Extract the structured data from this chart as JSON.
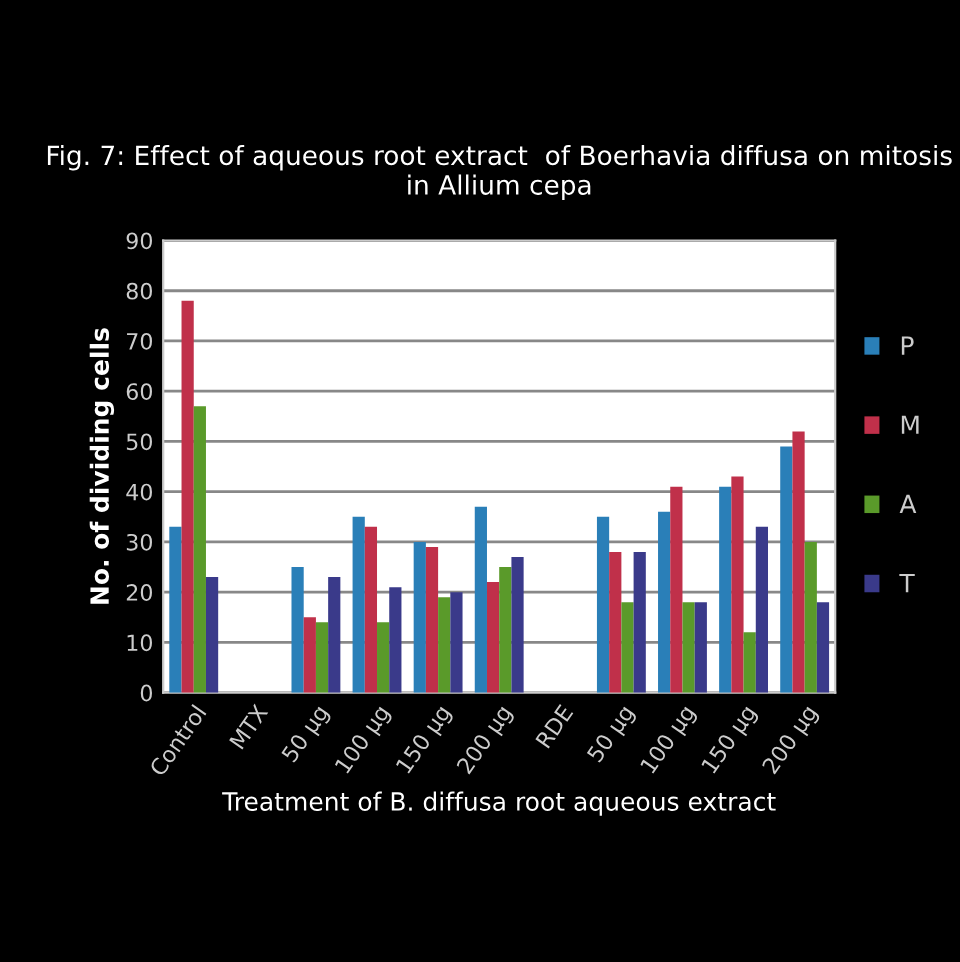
{
  "chart_data": {
    "type": "bar",
    "title": "Fig. 7: Effect of aqueous root extract  of Boerhavia diffusa on mitosis in Allium cepa",
    "xlabel": "Treatment of B. diffusa root aqueous extract",
    "ylabel": "No. of dividing cells",
    "categories": [
      "Control",
      "MTX",
      "50 µg",
      "100 µg",
      "150 µg",
      "200 µg",
      "RDE",
      "50 µg",
      "100 µg",
      "150 µg",
      "200 µg"
    ],
    "series": [
      {
        "name": "P",
        "color": "#2a7fb8",
        "values": [
          33,
          null,
          25,
          35,
          30,
          37,
          null,
          35,
          36,
          41,
          49
        ]
      },
      {
        "name": "M",
        "color": "#c0304a",
        "values": [
          78,
          null,
          15,
          33,
          29,
          22,
          null,
          28,
          41,
          43,
          52
        ]
      },
      {
        "name": "A",
        "color": "#5a9a2a",
        "values": [
          57,
          null,
          14,
          14,
          19,
          25,
          null,
          18,
          18,
          12,
          30
        ]
      },
      {
        "name": "T",
        "color": "#3a3a8a",
        "values": [
          23,
          null,
          23,
          21,
          20,
          27,
          null,
          28,
          18,
          33,
          18
        ]
      }
    ],
    "ylim": [
      0,
      90
    ],
    "yticks": [
      0,
      10,
      20,
      30,
      40,
      50,
      60,
      70,
      80,
      90
    ],
    "grid": "y",
    "legend": "right"
  }
}
